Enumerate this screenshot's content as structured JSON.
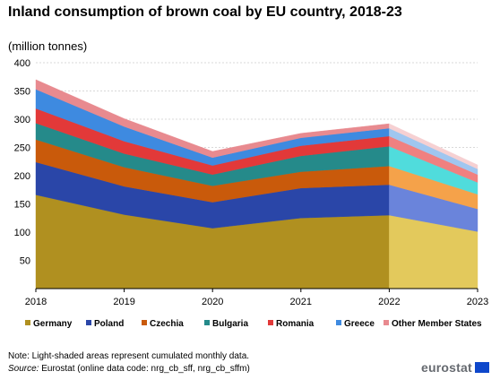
{
  "title": "Inland consumption of brown coal by EU country, 2018-23",
  "subtitle": "(million tonnes)",
  "note": "Note: Light-shaded areas represent cumulated monthly data.",
  "source_label": "Source:",
  "source_text": " Eurostat (online data code: nrg_cb_sff, nrg_cb_sffm)",
  "logo_text": "eurostat",
  "chart_data": {
    "type": "area",
    "stacked": true,
    "x": [
      "2018",
      "2019",
      "2020",
      "2021",
      "2022",
      "2023"
    ],
    "ylim": [
      0,
      400
    ],
    "yticks": [
      50,
      100,
      150,
      200,
      250,
      300,
      350,
      400
    ],
    "grid": true,
    "legend_position": "bottom",
    "light_shaded_from": "2022",
    "series": [
      {
        "name": "Germany",
        "color": "#b09020",
        "light_color": "#e3c95c",
        "values": [
          166,
          131,
          107,
          125,
          130,
          101
        ]
      },
      {
        "name": "Poland",
        "color": "#2a46a8",
        "light_color": "#6a84db",
        "values": [
          58,
          50,
          46,
          53,
          54,
          40
        ]
      },
      {
        "name": "Czechia",
        "color": "#c95a0b",
        "light_color": "#f5a24a",
        "values": [
          40,
          34,
          29,
          29,
          33,
          26
        ]
      },
      {
        "name": "Bulgaria",
        "color": "#258a8a",
        "light_color": "#50dcdc",
        "values": [
          29,
          24,
          20,
          28,
          35,
          21
        ]
      },
      {
        "name": "Romania",
        "color": "#e23939",
        "light_color": "#f08080",
        "values": [
          26,
          22,
          16,
          18,
          18,
          14
        ]
      },
      {
        "name": "Greece",
        "color": "#3e8ae0",
        "light_color": "#9fc6f0",
        "values": [
          34,
          26,
          14,
          14,
          14,
          10
        ]
      },
      {
        "name": "Other Member States",
        "color": "#e88a8f",
        "light_color": "#f6d0d2",
        "values": [
          17,
          14,
          11,
          8,
          8,
          7
        ]
      }
    ]
  }
}
